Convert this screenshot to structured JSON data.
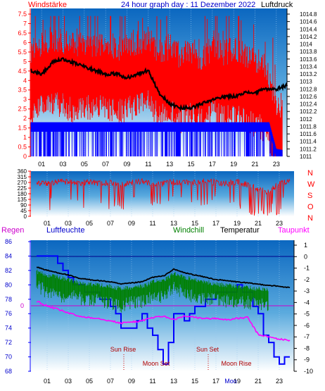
{
  "header": {
    "left_label": "Windstärke",
    "title": "24 hour graph day : 11 Dezember 2022",
    "right_label": "Luftdruck"
  },
  "panel1": {
    "wind_ticks": [
      "0",
      "0.5",
      "1",
      "1.5",
      "2",
      "2.5",
      "3",
      "3.5",
      "4",
      "4.5",
      "5",
      "5.5",
      "6",
      "6.5",
      "7",
      "7.5"
    ],
    "pressure_ticks": [
      "1011",
      "1011.2",
      "1011.4",
      "1011.6",
      "1011.8",
      "1012",
      "1012.2",
      "1012.4",
      "1012.6",
      "1012.8",
      "1013",
      "1013.2",
      "1013.4",
      "1013.6",
      "1013.8",
      "1014",
      "1014.2",
      "1014.4",
      "1014.6",
      "1014.8"
    ],
    "hour_labels": [
      "01",
      "03",
      "05",
      "07",
      "09",
      "11",
      "13",
      "15",
      "17",
      "19",
      "21",
      "23"
    ]
  },
  "panel2": {
    "deg_ticks": [
      "0",
      "45",
      "90",
      "135",
      "180",
      "225",
      "270",
      "315",
      "360"
    ],
    "compass": [
      "N",
      "W",
      "S",
      "O",
      "N"
    ],
    "hour_labels": [
      "01",
      "03",
      "05",
      "07",
      "09",
      "11",
      "13",
      "15",
      "17",
      "19",
      "21",
      "23"
    ]
  },
  "panel3": {
    "legend": {
      "regen": "Regen",
      "luftfeuchte": "Luftfeuchte",
      "windchill": "Windchill",
      "temperatur": "Temperatur",
      "taupunkt": "Taupunkt"
    },
    "humidity_ticks": [
      "68",
      "70",
      "72",
      "74",
      "76",
      "78",
      "80",
      "82",
      "84",
      "86"
    ],
    "rain_zero": "0",
    "temp_ticks": [
      "1",
      "0",
      "-1",
      "-2",
      "-3",
      "-4",
      "-5",
      "-6",
      "-7",
      "-8",
      "-9",
      "-10"
    ],
    "hour_labels": [
      "01",
      "03",
      "05",
      "07",
      "09",
      "11",
      "13",
      "15",
      "17",
      "19",
      "21",
      "23"
    ],
    "astro": {
      "sun_rise": "Sun Rise",
      "sun_set": "Sun Set",
      "moon_set": "Moon Set",
      "moon_rise": "Moon Rise",
      "moon_rise_overlap": "Moo"
    }
  },
  "colors": {
    "wind_gust": "#ff0000",
    "wind_avg": "#0000ff",
    "pressure": "#000000",
    "direction": "#ff0000",
    "temperature": "#000000",
    "windchill": "#008000",
    "dewpoint": "#ff00ff",
    "humidity": "#0000ff",
    "rain": "#ff0000"
  },
  "chart_data": [
    {
      "type": "line",
      "title": "24 hour graph day : 11 Dezember 2022",
      "x_hours": [
        0,
        1,
        2,
        3,
        4,
        5,
        6,
        7,
        8,
        9,
        10,
        11,
        12,
        13,
        14,
        15,
        16,
        17,
        18,
        19,
        20,
        21,
        22,
        23,
        24
      ],
      "series": [
        {
          "name": "Windstärke",
          "axis": "left",
          "ylim": [
            0,
            7.5
          ],
          "values": [
            3.3,
            3.7,
            3.9,
            3.8,
            3.5,
            3.7,
            3.6,
            3.8,
            3.4,
            3.6,
            3.7,
            3.9,
            3.2,
            3.5,
            3.0,
            3.3,
            2.9,
            3.4,
            3.1,
            3.4,
            3.0,
            2.8,
            2.5,
            0.4,
            0.3
          ]
        },
        {
          "name": "Luftdruck",
          "axis": "right",
          "ylim": [
            1011,
            1014.8
          ],
          "values": [
            1013.3,
            1013.2,
            1013.5,
            1013.6,
            1013.5,
            1013.4,
            1013.3,
            1013.2,
            1013.2,
            1013.1,
            1013.2,
            1013.3,
            1012.7,
            1012.4,
            1012.3,
            1012.3,
            1012.4,
            1012.5,
            1012.6,
            1012.6,
            1012.7,
            1012.7,
            1012.8,
            1012.8,
            1012.9
          ]
        }
      ]
    },
    {
      "type": "line",
      "ylim": [
        0,
        360
      ],
      "x_hours": [
        0,
        1,
        2,
        3,
        4,
        5,
        6,
        7,
        8,
        9,
        10,
        11,
        12,
        13,
        14,
        15,
        16,
        17,
        18,
        19,
        20,
        21,
        22,
        23,
        24
      ],
      "series": [
        {
          "name": "Windrichtung",
          "values": [
            270,
            260,
            280,
            270,
            265,
            275,
            260,
            270,
            255,
            270,
            280,
            265,
            260,
            275,
            270,
            265,
            280,
            270,
            260,
            275,
            250,
            220,
            190,
            270,
            270
          ]
        }
      ]
    },
    {
      "type": "line",
      "x_hours": [
        0,
        1,
        2,
        3,
        4,
        5,
        6,
        7,
        8,
        9,
        10,
        11,
        12,
        13,
        14,
        15,
        16,
        17,
        18,
        19,
        20,
        21,
        22,
        23,
        24
      ],
      "series": [
        {
          "name": "Luftfeuchte",
          "axis": "left",
          "ylim": [
            68,
            86
          ],
          "values": [
            84.5,
            83.6,
            83.3,
            81.2,
            79.6,
            79.6,
            78.4,
            77.6,
            74.3,
            74.0,
            75.6,
            73.0,
            69.5,
            75.9,
            75.2,
            76.8,
            77.5,
            78.4,
            79.0,
            79.2,
            79.2,
            75.3,
            71.9,
            69.5,
            69.5
          ]
        },
        {
          "name": "Temperatur",
          "axis": "right",
          "ylim": [
            -10,
            1
          ],
          "values": [
            -0.9,
            -1.2,
            -1.4,
            -1.6,
            -1.9,
            -2.0,
            -2.1,
            -2.2,
            -2.4,
            -2.3,
            -2.2,
            -1.8,
            -1.7,
            -1.1,
            -1.4,
            -1.6,
            -1.8,
            -2.0,
            -2.1,
            -2.2,
            -2.3,
            -2.4,
            -2.5,
            -2.6,
            -2.7
          ]
        },
        {
          "name": "Windchill",
          "axis": "right",
          "ylim": [
            -10,
            1
          ],
          "values": [
            -1.8,
            -2.6,
            -2.9,
            -2.8,
            -3.0,
            -3.3,
            -3.2,
            -3.5,
            -3.7,
            -3.4,
            -3.3,
            -3.0,
            -2.8,
            -2.1,
            -2.6,
            -2.9,
            -3.1,
            -3.2,
            -3.3,
            -3.4,
            -3.4,
            -3.5,
            -3.6,
            -3.7,
            -3.8
          ]
        },
        {
          "name": "Taupunkt",
          "axis": "right",
          "ylim": [
            -10,
            1
          ],
          "values": [
            -3.9,
            -4.3,
            -4.6,
            -4.9,
            -5.2,
            -5.3,
            -5.4,
            -5.6,
            -5.8,
            -5.7,
            -5.6,
            -5.3,
            -5.2,
            -5.5,
            -5.2,
            -5.3,
            -5.4,
            -5.4,
            -5.5,
            -5.4,
            -5.3,
            -6.8,
            -7.0,
            -7.2,
            -7.3
          ]
        },
        {
          "name": "Regen",
          "axis": "left",
          "values": [
            0,
            0,
            0,
            0,
            0,
            0,
            0,
            0,
            0,
            0,
            0,
            0,
            0,
            0,
            0,
            0,
            0,
            0,
            0,
            0,
            0,
            0,
            0,
            0,
            0
          ]
        }
      ],
      "annotations": [
        {
          "text": "Sun Rise",
          "hour": 8.2
        },
        {
          "text": "Moon Set",
          "hour": 11.0
        },
        {
          "text": "Sun Set",
          "hour": 16.5
        },
        {
          "text": "Moon Rise",
          "hour": 20.2
        }
      ]
    }
  ]
}
